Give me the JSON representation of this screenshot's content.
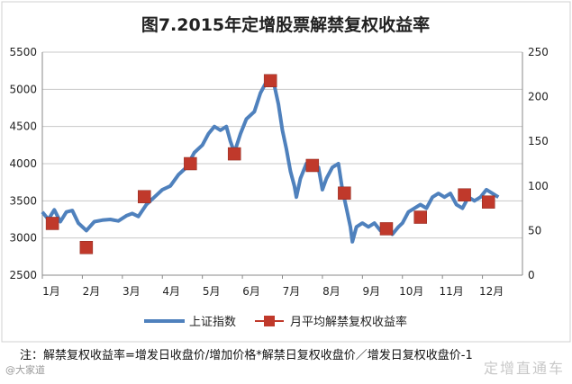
{
  "chart_data": {
    "type": "line",
    "title": "图7.2015年定增股票解禁复权收益率",
    "categories": [
      "1月",
      "2月",
      "3月",
      "4月",
      "5月",
      "6月",
      "7月",
      "8月",
      "9月",
      "10月",
      "11月",
      "12月"
    ],
    "y_left": {
      "min": 2500,
      "max": 5500,
      "ticks": [
        2500,
        3000,
        3500,
        4000,
        4500,
        5000,
        5500
      ]
    },
    "y_right": {
      "min": 0,
      "max": 250,
      "ticks": [
        0,
        50,
        100,
        150,
        200,
        250
      ]
    },
    "grid": true,
    "legend_position": "bottom",
    "series": [
      {
        "name": "上证指数",
        "axis": "left",
        "color": "#4F81BD",
        "points": [
          [
            0.0,
            3350
          ],
          [
            0.15,
            3250
          ],
          [
            0.3,
            3380
          ],
          [
            0.45,
            3220
          ],
          [
            0.6,
            3350
          ],
          [
            0.75,
            3370
          ],
          [
            0.9,
            3200
          ],
          [
            1.1,
            3100
          ],
          [
            1.3,
            3220
          ],
          [
            1.5,
            3240
          ],
          [
            1.7,
            3250
          ],
          [
            1.9,
            3230
          ],
          [
            2.1,
            3300
          ],
          [
            2.25,
            3330
          ],
          [
            2.4,
            3290
          ],
          [
            2.6,
            3450
          ],
          [
            2.8,
            3550
          ],
          [
            3.0,
            3650
          ],
          [
            3.2,
            3700
          ],
          [
            3.4,
            3850
          ],
          [
            3.6,
            3950
          ],
          [
            3.8,
            4150
          ],
          [
            4.0,
            4250
          ],
          [
            4.15,
            4400
          ],
          [
            4.3,
            4500
          ],
          [
            4.45,
            4450
          ],
          [
            4.6,
            4500
          ],
          [
            4.7,
            4300
          ],
          [
            4.8,
            4150
          ],
          [
            4.95,
            4400
          ],
          [
            5.1,
            4600
          ],
          [
            5.3,
            4700
          ],
          [
            5.45,
            4950
          ],
          [
            5.6,
            5100
          ],
          [
            5.7,
            5150
          ],
          [
            5.8,
            5050
          ],
          [
            5.9,
            4800
          ],
          [
            6.0,
            4450
          ],
          [
            6.1,
            4200
          ],
          [
            6.2,
            3900
          ],
          [
            6.3,
            3700
          ],
          [
            6.35,
            3550
          ],
          [
            6.45,
            3800
          ],
          [
            6.6,
            4000
          ],
          [
            6.75,
            3950
          ],
          [
            6.9,
            3950
          ],
          [
            7.0,
            3650
          ],
          [
            7.1,
            3800
          ],
          [
            7.25,
            3950
          ],
          [
            7.4,
            4000
          ],
          [
            7.5,
            3650
          ],
          [
            7.6,
            3400
          ],
          [
            7.7,
            3150
          ],
          [
            7.75,
            2950
          ],
          [
            7.85,
            3150
          ],
          [
            8.0,
            3200
          ],
          [
            8.15,
            3150
          ],
          [
            8.3,
            3200
          ],
          [
            8.45,
            3100
          ],
          [
            8.6,
            3150
          ],
          [
            8.75,
            3050
          ],
          [
            8.9,
            3150
          ],
          [
            9.0,
            3200
          ],
          [
            9.15,
            3350
          ],
          [
            9.3,
            3400
          ],
          [
            9.45,
            3450
          ],
          [
            9.6,
            3400
          ],
          [
            9.75,
            3550
          ],
          [
            9.9,
            3600
          ],
          [
            10.05,
            3550
          ],
          [
            10.2,
            3600
          ],
          [
            10.35,
            3450
          ],
          [
            10.5,
            3400
          ],
          [
            10.65,
            3550
          ],
          [
            10.8,
            3500
          ],
          [
            10.95,
            3550
          ],
          [
            11.1,
            3650
          ],
          [
            11.25,
            3600
          ],
          [
            11.4,
            3550
          ]
        ]
      },
      {
        "name": "月平均解禁复权收益率",
        "axis": "right",
        "color": "#C0392B",
        "points": [
          [
            0.25,
            58
          ],
          [
            1.1,
            31
          ],
          [
            2.55,
            88
          ],
          [
            3.7,
            125
          ],
          [
            4.8,
            136
          ],
          [
            5.7,
            218
          ],
          [
            6.75,
            123
          ],
          [
            7.55,
            92
          ],
          [
            8.6,
            52
          ],
          [
            9.45,
            65
          ],
          [
            10.55,
            90
          ],
          [
            11.15,
            82
          ]
        ]
      }
    ]
  },
  "footnote": "注：解禁复权收益率=增发日收盘价/增加价格*解禁日复权收盘价／增发日复权收盘价-1",
  "watermark_left": "@大家道",
  "watermark_right": "定增直通车"
}
